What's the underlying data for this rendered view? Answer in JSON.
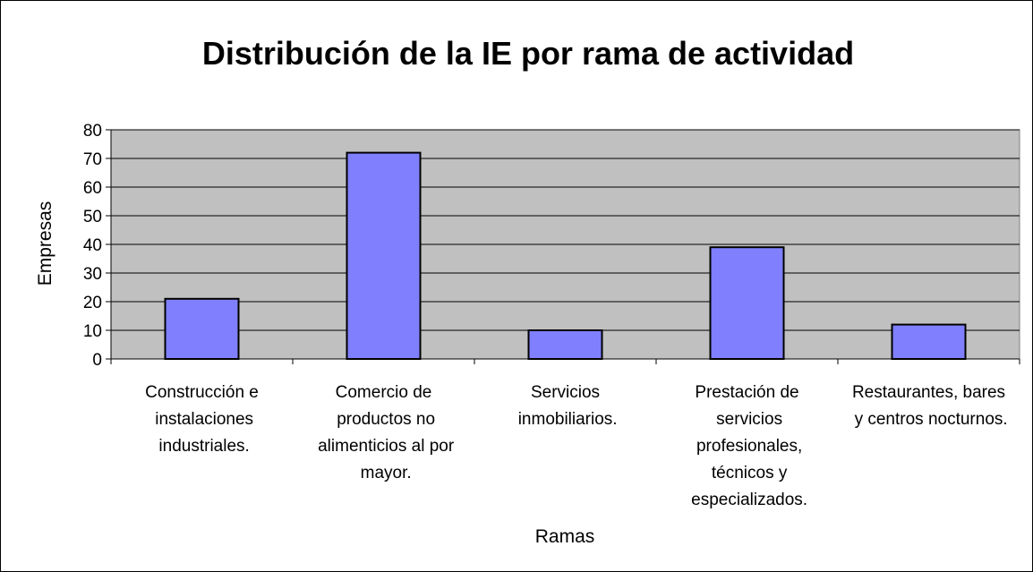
{
  "chart_data": {
    "type": "bar",
    "title": "Distribución de la IE por rama de actividad",
    "x_label": "Ramas",
    "y_label": "Empresas",
    "categories": [
      "Construcción e instalaciones industriales.",
      "Comercio de productos no alimenticios al por mayor.",
      "Servicios inmobiliarios.",
      "Prestación de servicios profesionales, técnicos y especializados.",
      "Restaurantes, bares y centros nocturnos."
    ],
    "values": [
      21,
      72,
      10,
      39,
      12
    ],
    "color": "#8080ff",
    "ylim": [
      0,
      80
    ],
    "yticks": [
      0,
      10,
      20,
      30,
      40,
      50,
      60,
      70,
      80
    ],
    "grid": true
  }
}
